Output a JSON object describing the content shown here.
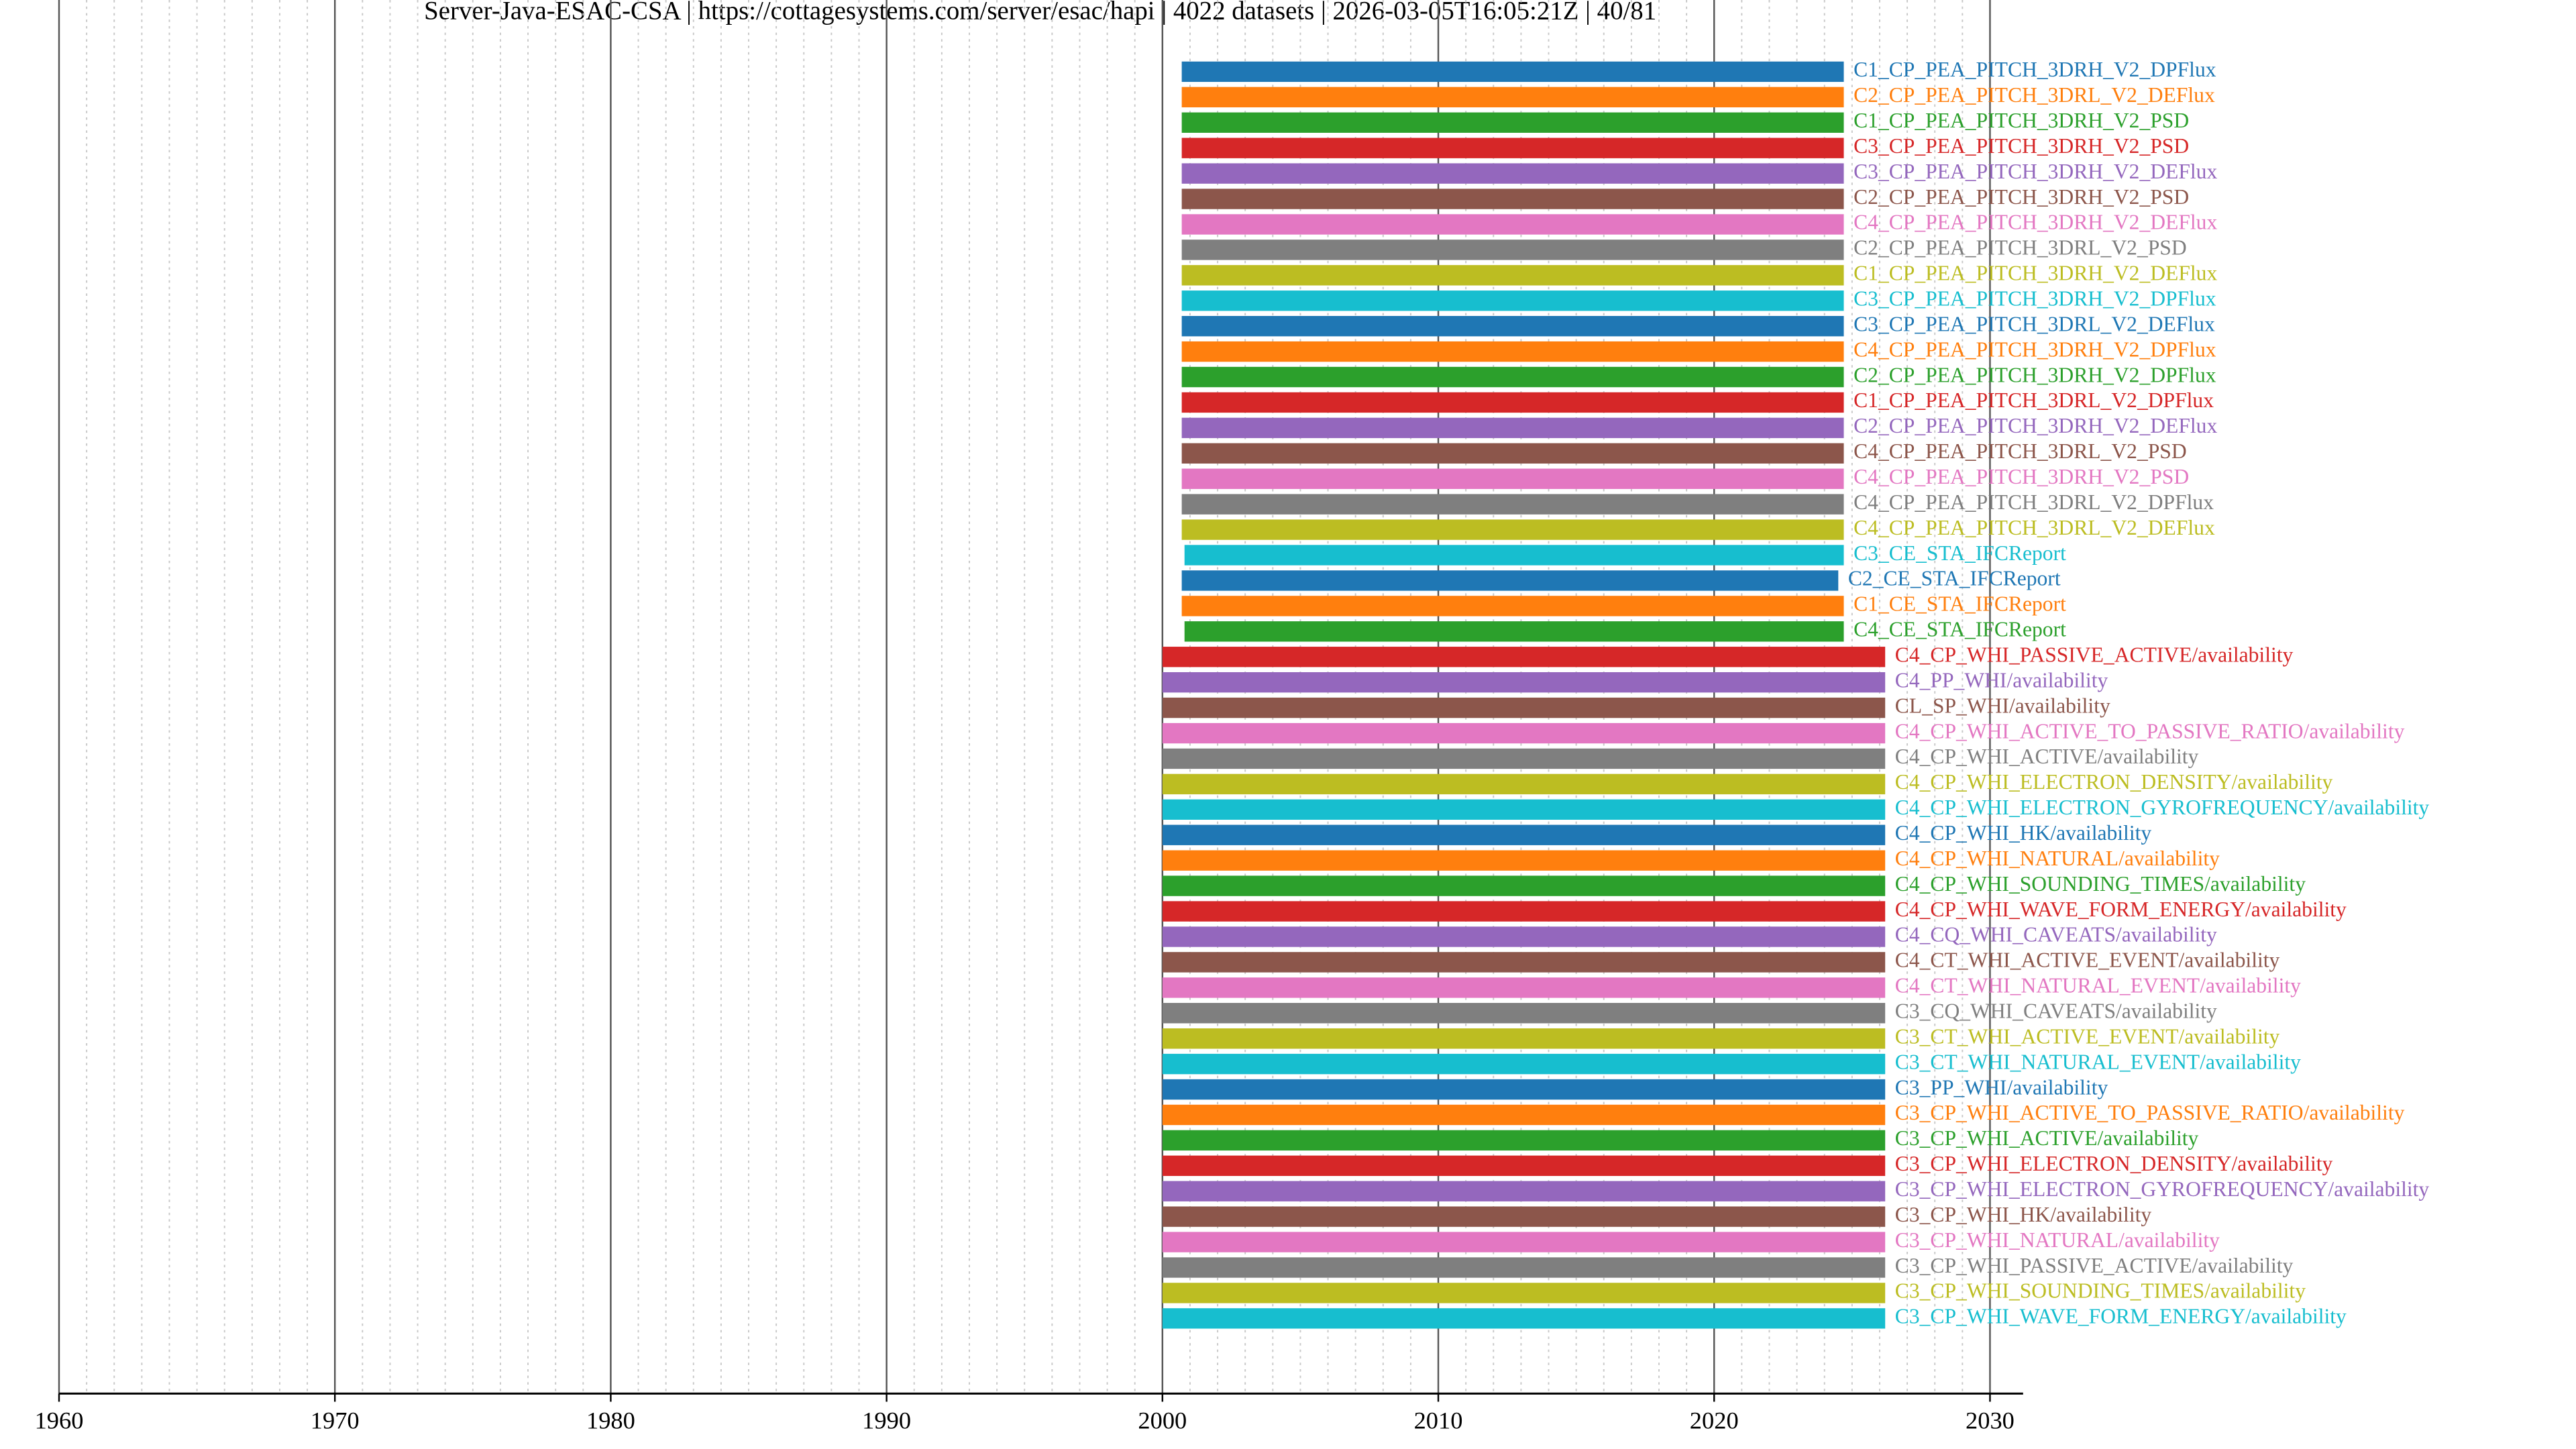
{
  "chart_data": {
    "type": "gantt",
    "title": "Server-Java-ESAC-CSA | https://cottagesystems.com/server/esac/hapi | 4022 datasets | 2026-03-05T16:05:21Z | 40/81",
    "categories": [
      "C1_CP_PEA_PITCH_3DRH_V2_DPFlux",
      "C2_CP_PEA_PITCH_3DRL_V2_DEFlux",
      "C1_CP_PEA_PITCH_3DRH_V2_PSD",
      "C3_CP_PEA_PITCH_3DRH_V2_PSD",
      "C3_CP_PEA_PITCH_3DRH_V2_DEFlux",
      "C2_CP_PEA_PITCH_3DRH_V2_PSD",
      "C4_CP_PEA_PITCH_3DRH_V2_DEFlux",
      "C2_CP_PEA_PITCH_3DRL_V2_PSD",
      "C1_CP_PEA_PITCH_3DRH_V2_DEFlux",
      "C3_CP_PEA_PITCH_3DRH_V2_DPFlux",
      "C3_CP_PEA_PITCH_3DRL_V2_DEFlux",
      "C4_CP_PEA_PITCH_3DRH_V2_DPFlux",
      "C2_CP_PEA_PITCH_3DRH_V2_DPFlux",
      "C1_CP_PEA_PITCH_3DRL_V2_DPFlux",
      "C2_CP_PEA_PITCH_3DRH_V2_DEFlux",
      "C4_CP_PEA_PITCH_3DRL_V2_PSD",
      "C4_CP_PEA_PITCH_3DRH_V2_PSD",
      "C4_CP_PEA_PITCH_3DRL_V2_DPFlux",
      "C4_CP_PEA_PITCH_3DRL_V2_DEFlux",
      "C3_CE_STA_IFCReport",
      "C2_CE_STA_IFCReport",
      "C1_CE_STA_IFCReport",
      "C4_CE_STA_IFCReport",
      "C4_CP_WHI_PASSIVE_ACTIVE/availability",
      "C4_PP_WHI/availability",
      "CL_SP_WHI/availability",
      "C4_CP_WHI_ACTIVE_TO_PASSIVE_RATIO/availability",
      "C4_CP_WHI_ACTIVE/availability",
      "C4_CP_WHI_ELECTRON_DENSITY/availability",
      "C4_CP_WHI_ELECTRON_GYROFREQUENCY/availability",
      "C4_CP_WHI_HK/availability",
      "C4_CP_WHI_NATURAL/availability",
      "C4_CP_WHI_SOUNDING_TIMES/availability",
      "C4_CP_WHI_WAVE_FORM_ENERGY/availability",
      "C4_CQ_WHI_CAVEATS/availability",
      "C4_CT_WHI_ACTIVE_EVENT/availability",
      "C4_CT_WHI_NATURAL_EVENT/availability",
      "C3_CQ_WHI_CAVEATS/availability",
      "C3_CT_WHI_ACTIVE_EVENT/availability",
      "C3_CT_WHI_NATURAL_EVENT/availability",
      "C3_PP_WHI/availability",
      "C3_CP_WHI_ACTIVE_TO_PASSIVE_RATIO/availability",
      "C3_CP_WHI_ACTIVE/availability",
      "C3_CP_WHI_ELECTRON_DENSITY/availability",
      "C3_CP_WHI_ELECTRON_GYROFREQUENCY/availability",
      "C3_CP_WHI_HK/availability",
      "C3_CP_WHI_NATURAL/availability",
      "C3_CP_WHI_PASSIVE_ACTIVE/availability",
      "C3_CP_WHI_SOUNDING_TIMES/availability",
      "C3_CP_WHI_WAVE_FORM_ENERGY/availability"
    ],
    "start": [
      2000.7,
      2000.7,
      2000.7,
      2000.7,
      2000.7,
      2000.7,
      2000.7,
      2000.7,
      2000.7,
      2000.7,
      2000.7,
      2000.7,
      2000.7,
      2000.7,
      2000.7,
      2000.7,
      2000.7,
      2000.7,
      2000.7,
      2000.8,
      2000.7,
      2000.7,
      2000.8,
      2000,
      2000,
      2000,
      2000,
      2000,
      2000,
      2000,
      2000,
      2000,
      2000,
      2000,
      2000,
      2000,
      2000,
      2000,
      2000,
      2000,
      2000,
      2000,
      2000,
      2000,
      2000,
      2000,
      2000,
      2000,
      2000,
      2000
    ],
    "end": [
      2024.7,
      2024.7,
      2024.7,
      2024.7,
      2024.7,
      2024.7,
      2024.7,
      2024.7,
      2024.7,
      2024.7,
      2024.7,
      2024.7,
      2024.7,
      2024.7,
      2024.7,
      2024.7,
      2024.7,
      2024.7,
      2024.7,
      2024.7,
      2024.5,
      2024.7,
      2024.7,
      2026.2,
      2026.2,
      2026.2,
      2026.2,
      2026.2,
      2026.2,
      2026.2,
      2026.2,
      2026.2,
      2026.2,
      2026.2,
      2026.2,
      2026.2,
      2026.2,
      2026.2,
      2026.2,
      2026.2,
      2026.2,
      2026.2,
      2026.2,
      2026.2,
      2026.2,
      2026.2,
      2026.2,
      2026.2,
      2026.2,
      2026.2
    ],
    "palette": [
      "#1f77b4",
      "#ff7f0e",
      "#2ca02c",
      "#d62728",
      "#9467bd",
      "#8c564b",
      "#e377c2",
      "#7f7f7f",
      "#bcbd22",
      "#17becf"
    ],
    "xlim": [
      1960,
      2031.2
    ],
    "xticks": [
      1960,
      1970,
      1980,
      1990,
      2000,
      2010,
      2020,
      2030
    ],
    "minor_xticks": [
      1961,
      1962,
      1963,
      1964,
      1965,
      1966,
      1967,
      1968,
      1969,
      1971,
      1972,
      1973,
      1974,
      1975,
      1976,
      1977,
      1978,
      1979,
      1981,
      1982,
      1983,
      1984,
      1985,
      1986,
      1987,
      1988,
      1989,
      1991,
      1992,
      1993,
      1994,
      1995,
      1996,
      1997,
      1998,
      1999,
      2001,
      2002,
      2003,
      2004,
      2005,
      2006,
      2007,
      2008,
      2009,
      2011,
      2012,
      2013,
      2014,
      2015,
      2016,
      2017,
      2018,
      2019,
      2021,
      2022,
      2023,
      2024,
      2025,
      2026,
      2027,
      2028,
      2029
    ],
    "grid": true
  }
}
